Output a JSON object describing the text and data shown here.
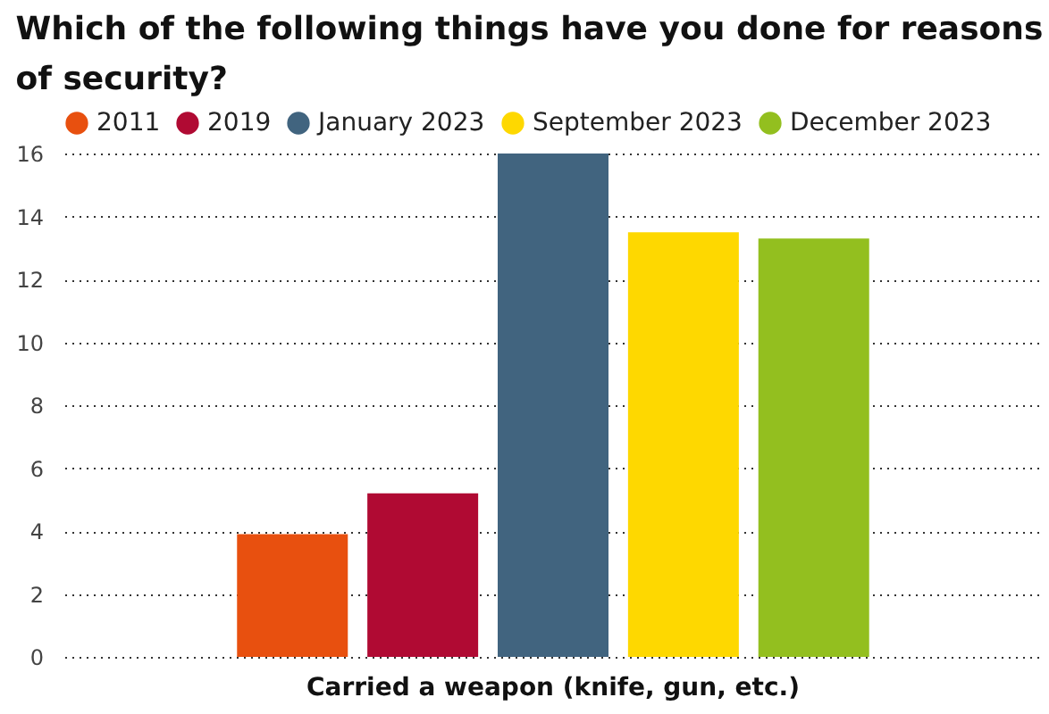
{
  "chart_data": {
    "type": "bar",
    "title": "Which of the following things have you done for reasons of security?",
    "categories": [
      "Carried a weapon (knife, gun, etc.)"
    ],
    "series": [
      {
        "name": "2011",
        "color": "#e8500f",
        "values": [
          3.9
        ]
      },
      {
        "name": "2019",
        "color": "#b00a33",
        "values": [
          5.2
        ]
      },
      {
        "name": "January 2023",
        "color": "#41647f",
        "values": [
          16
        ]
      },
      {
        "name": "September 2023",
        "color": "#fed800",
        "values": [
          13.5
        ]
      },
      {
        "name": "December 2023",
        "color": "#93bf1f",
        "values": [
          13.3
        ]
      }
    ],
    "ylim": [
      0,
      16
    ],
    "yticks": [
      0,
      2,
      4,
      6,
      8,
      10,
      12,
      14,
      16
    ],
    "grid": "y",
    "legend": "top left"
  }
}
